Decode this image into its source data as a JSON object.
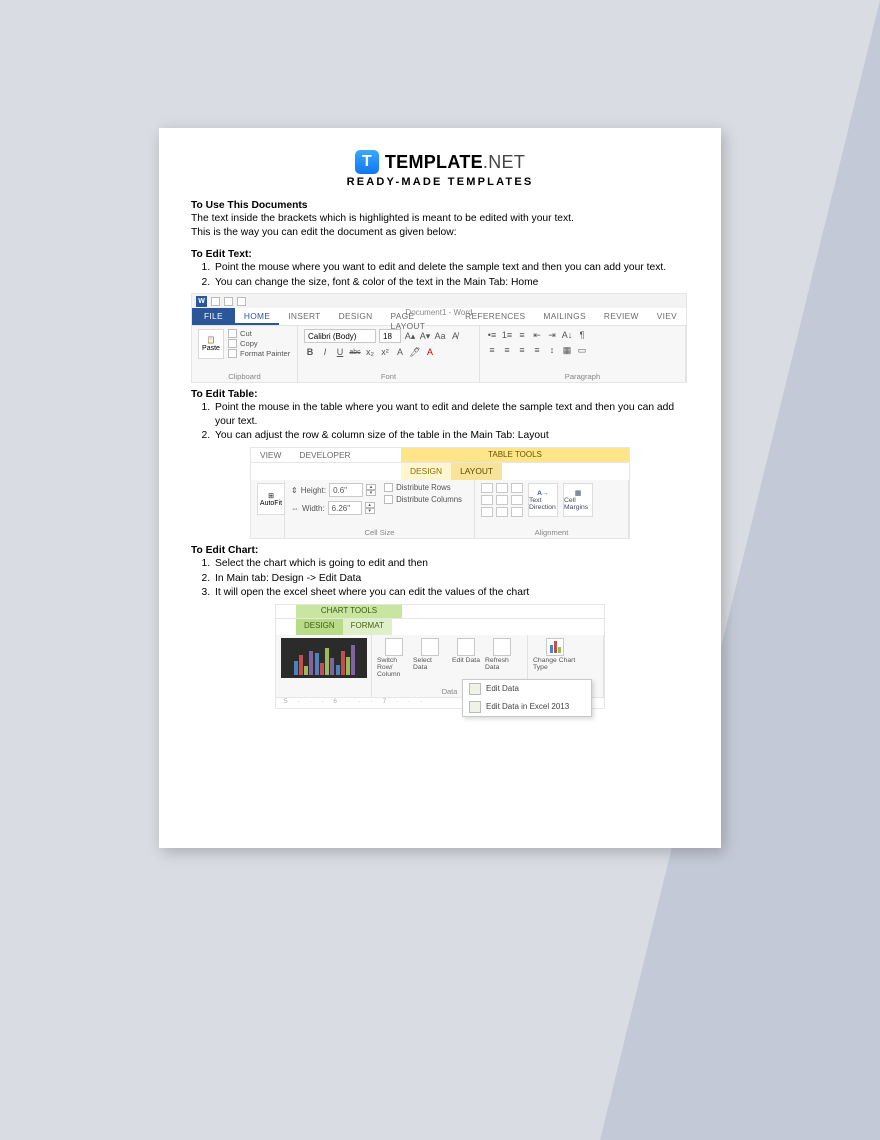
{
  "brand": {
    "logo_letter": "T",
    "name": "TEMPLATE",
    "suffix": ".NET",
    "tagline": "READY-MADE TEMPLATES"
  },
  "intro": {
    "heading": "To Use This Documents",
    "line1": "The text inside the brackets which is highlighted is meant to be edited with your text.",
    "line2": "This is the way you can edit the document as given below:"
  },
  "edit_text": {
    "heading": "To Edit Text:",
    "items": [
      "Point the mouse where you want to edit and delete the sample text and then you can add your text.",
      "You can change the size, font & color of the text in the Main Tab: Home"
    ]
  },
  "ribbon1": {
    "doc_title": "Document1 - Word",
    "tabs": {
      "file": "FILE",
      "home": "HOME",
      "insert": "INSERT",
      "design": "DESIGN",
      "page_layout": "PAGE LAYOUT",
      "references": "REFERENCES",
      "mailings": "MAILINGS",
      "review": "REVIEW",
      "view": "VIEV"
    },
    "clipboard": {
      "paste": "Paste",
      "cut": "Cut",
      "copy": "Copy",
      "format_painter": "Format Painter",
      "label": "Clipboard"
    },
    "font": {
      "name": "Calibri (Body)",
      "size": "18",
      "label": "Font",
      "buttons": {
        "bold": "B",
        "italic": "I",
        "underline": "U",
        "strike": "abc",
        "sub": "x₂",
        "sup": "x²"
      }
    },
    "paragraph": {
      "label": "Paragraph"
    }
  },
  "edit_table": {
    "heading": "To Edit Table:",
    "items": [
      "Point the mouse in the table where you want to edit and delete the sample text and then you can add your text.",
      "You can adjust the row & column size of the table in the Main Tab: Layout"
    ]
  },
  "ribbon2": {
    "left_tabs": {
      "view": "VIEW",
      "developer": "DEVELOPER"
    },
    "context_title": "TABLE TOOLS",
    "context_tabs": {
      "design": "DESIGN",
      "layout": "LAYOUT"
    },
    "autofit": "AutoFit",
    "height_label": "Height:",
    "height_val": "0.6\"",
    "width_label": "Width:",
    "width_val": "6.26\"",
    "dist_rows": "Distribute Rows",
    "dist_cols": "Distribute Columns",
    "cellsize_label": "Cell Size",
    "text_dir": "Text Direction",
    "cell_margins": "Cell Margins",
    "align_label": "Alignment"
  },
  "edit_chart": {
    "heading": "To Edit Chart:",
    "items": [
      "Select the chart which is going to edit and then",
      "In Main tab: Design -> Edit Data",
      "It will open the excel sheet where you can edit the values of the chart"
    ]
  },
  "ribbon3": {
    "context_title": "CHART TOOLS",
    "design": "DESIGN",
    "format": "FORMAT",
    "switch": "Switch Row/ Column",
    "select": "Select Data",
    "edit": "Edit Data",
    "refresh": "Refresh Data",
    "data_label": "Data",
    "change": "Change Chart Type",
    "type_label": "Type",
    "menu1": "Edit Data",
    "menu2": "Edit Data in Excel 2013",
    "ruler": "5 · · · 6 · · · 7 · · ·",
    "preview": {
      "bg": "#2b2b2b",
      "series_colors": [
        "#4f81bd",
        "#c0504d",
        "#9bbb59",
        "#8064a2"
      ],
      "sets": [
        [
          14,
          20,
          9,
          24
        ],
        [
          22,
          12,
          27,
          17
        ],
        [
          10,
          24,
          18,
          30
        ]
      ]
    }
  },
  "colors": {
    "page_bg": "#ffffff",
    "outer_bg": "#d9dce3",
    "tri_bg": "#c3c9d6",
    "word_blue": "#2b579a",
    "table_yellow": "#ffe58a",
    "chart_green": "#c8e6a0"
  }
}
